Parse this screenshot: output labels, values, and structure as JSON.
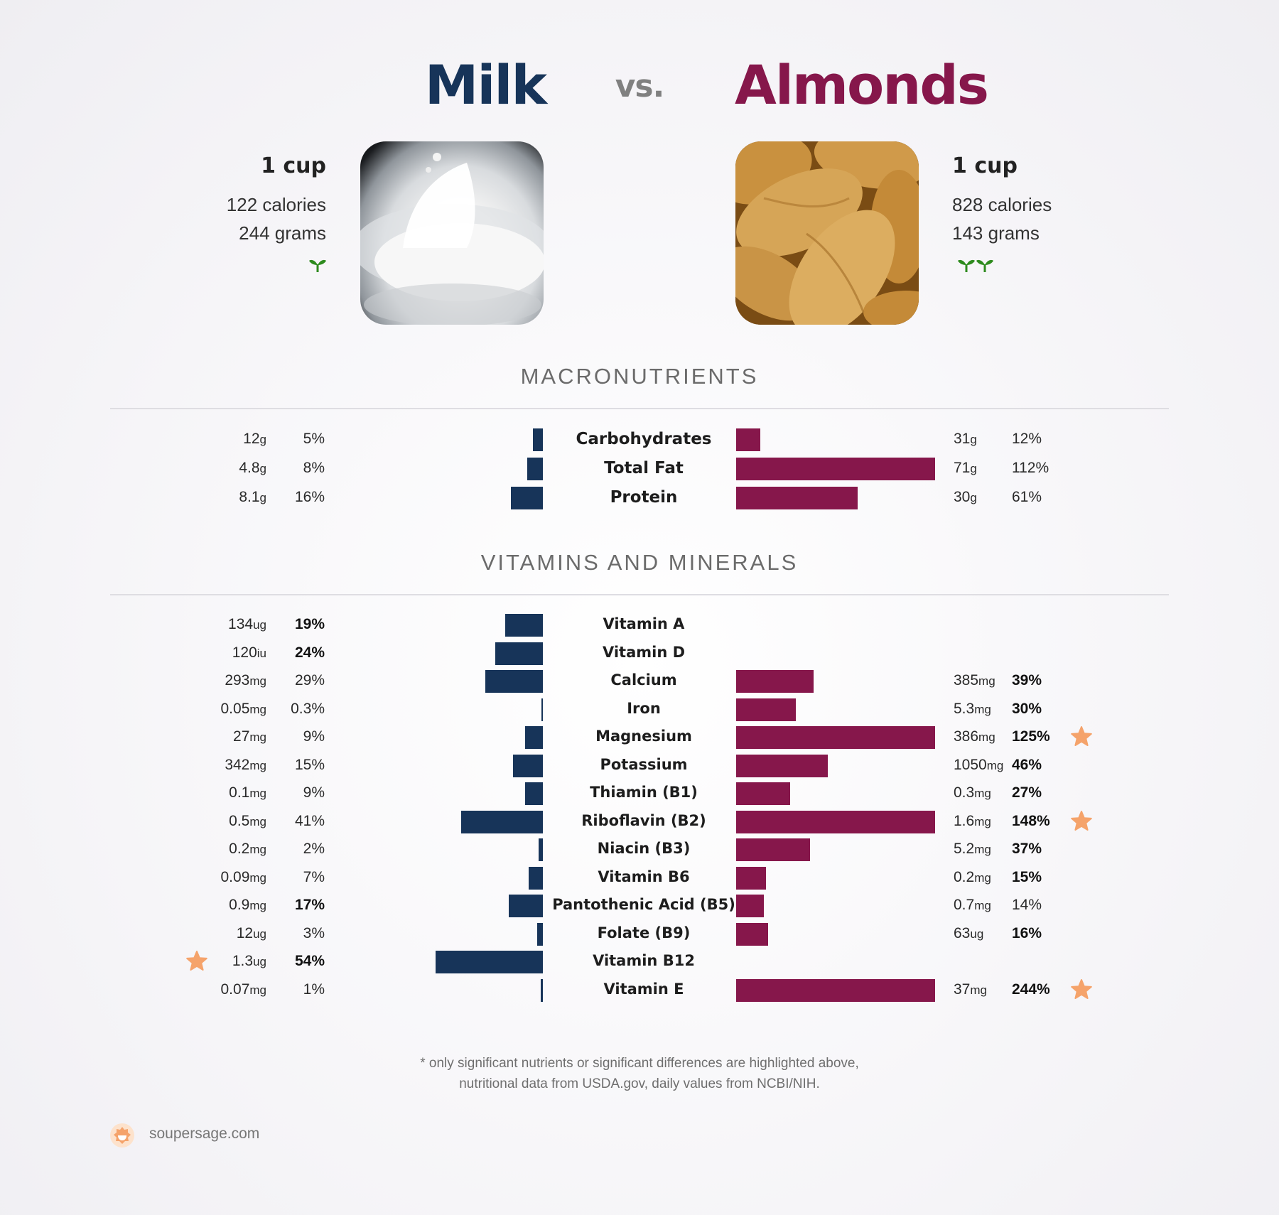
{
  "header": {
    "left_food": "Milk",
    "vs": "vs.",
    "right_food": "Almonds"
  },
  "left_info": {
    "serving": "1 cup",
    "calories": "122 calories",
    "grams": "244 grams",
    "sprouts": 1
  },
  "right_info": {
    "serving": "1 cup",
    "calories": "828 calories",
    "grams": "143 grams",
    "sprouts": 2
  },
  "images": {
    "left": "milk-photo",
    "right": "almonds-photo"
  },
  "sections": {
    "macros": "MACRONUTRIENTS",
    "vitamins": "VITAMINS AND MINERALS"
  },
  "colors": {
    "milk": "#173459",
    "almonds": "#86174b",
    "star": "#f5a36b",
    "sprout": "#2e8b1e"
  },
  "chart_data": [
    {
      "type": "bar",
      "title": "MACRONUTRIENTS",
      "categories": [
        "Carbohydrates",
        "Total Fat",
        "Protein"
      ],
      "series": [
        {
          "name": "Milk",
          "amounts": [
            "12",
            "4.8",
            "8.1"
          ],
          "units": [
            "g",
            "g",
            "g"
          ],
          "values": [
            5,
            8,
            16
          ],
          "pct_labels": [
            "5%",
            "8%",
            "16%"
          ],
          "bold": [
            false,
            false,
            false
          ],
          "star": [
            false,
            false,
            false
          ]
        },
        {
          "name": "Almonds",
          "amounts": [
            "31",
            "71",
            "30"
          ],
          "units": [
            "g",
            "g",
            "g"
          ],
          "values": [
            12,
            112,
            61
          ],
          "pct_labels": [
            "12%",
            "112%",
            "61%"
          ],
          "bold": [
            false,
            false,
            false
          ],
          "star": [
            false,
            false,
            false
          ]
        }
      ]
    },
    {
      "type": "bar",
      "title": "VITAMINS AND MINERALS",
      "categories": [
        "Vitamin A",
        "Vitamin D",
        "Calcium",
        "Iron",
        "Magnesium",
        "Potassium",
        "Thiamin (B1)",
        "Riboflavin (B2)",
        "Niacin (B3)",
        "Vitamin B6",
        "Pantothenic Acid (B5)",
        "Folate (B9)",
        "Vitamin B12",
        "Vitamin E"
      ],
      "series": [
        {
          "name": "Milk",
          "amounts": [
            "134",
            "120",
            "293",
            "0.05",
            "27",
            "342",
            "0.1",
            "0.5",
            "0.2",
            "0.09",
            "0.9",
            "12",
            "1.3",
            "0.07"
          ],
          "units": [
            "ug",
            "iu",
            "mg",
            "mg",
            "mg",
            "mg",
            "mg",
            "mg",
            "mg",
            "mg",
            "mg",
            "ug",
            "ug",
            "mg"
          ],
          "values": [
            19,
            24,
            29,
            0.3,
            9,
            15,
            9,
            41,
            2,
            7,
            17,
            3,
            54,
            1
          ],
          "pct_labels": [
            "19%",
            "24%",
            "29%",
            "0.3%",
            "9%",
            "15%",
            "9%",
            "41%",
            "2%",
            "7%",
            "17%",
            "3%",
            "54%",
            "1%"
          ],
          "bold": [
            true,
            true,
            false,
            false,
            false,
            false,
            false,
            false,
            false,
            false,
            true,
            false,
            true,
            false
          ],
          "star": [
            false,
            false,
            false,
            false,
            false,
            false,
            false,
            false,
            false,
            false,
            false,
            false,
            true,
            false
          ]
        },
        {
          "name": "Almonds",
          "amounts": [
            null,
            null,
            "385",
            "5.3",
            "386",
            "1050",
            "0.3",
            "1.6",
            "5.2",
            "0.2",
            "0.7",
            "63",
            null,
            "37"
          ],
          "units": [
            null,
            null,
            "mg",
            "mg",
            "mg",
            "mg",
            "mg",
            "mg",
            "mg",
            "mg",
            "mg",
            "ug",
            null,
            "mg"
          ],
          "values": [
            null,
            null,
            39,
            30,
            125,
            46,
            27,
            148,
            37,
            15,
            14,
            16,
            null,
            244
          ],
          "pct_labels": [
            null,
            null,
            "39%",
            "30%",
            "125%",
            "46%",
            "27%",
            "148%",
            "37%",
            "15%",
            "14%",
            "16%",
            null,
            "244%"
          ],
          "bold": [
            false,
            false,
            true,
            true,
            true,
            true,
            true,
            true,
            true,
            true,
            false,
            true,
            false,
            true
          ],
          "star": [
            false,
            false,
            false,
            false,
            true,
            false,
            false,
            true,
            false,
            false,
            false,
            false,
            false,
            true
          ]
        }
      ]
    }
  ],
  "footer": {
    "note_line1": "* only significant nutrients or significant differences are highlighted above,",
    "note_line2": "nutritional data from USDA.gov, daily values from NCBI/NIH.",
    "brand": "soupersage.com"
  }
}
